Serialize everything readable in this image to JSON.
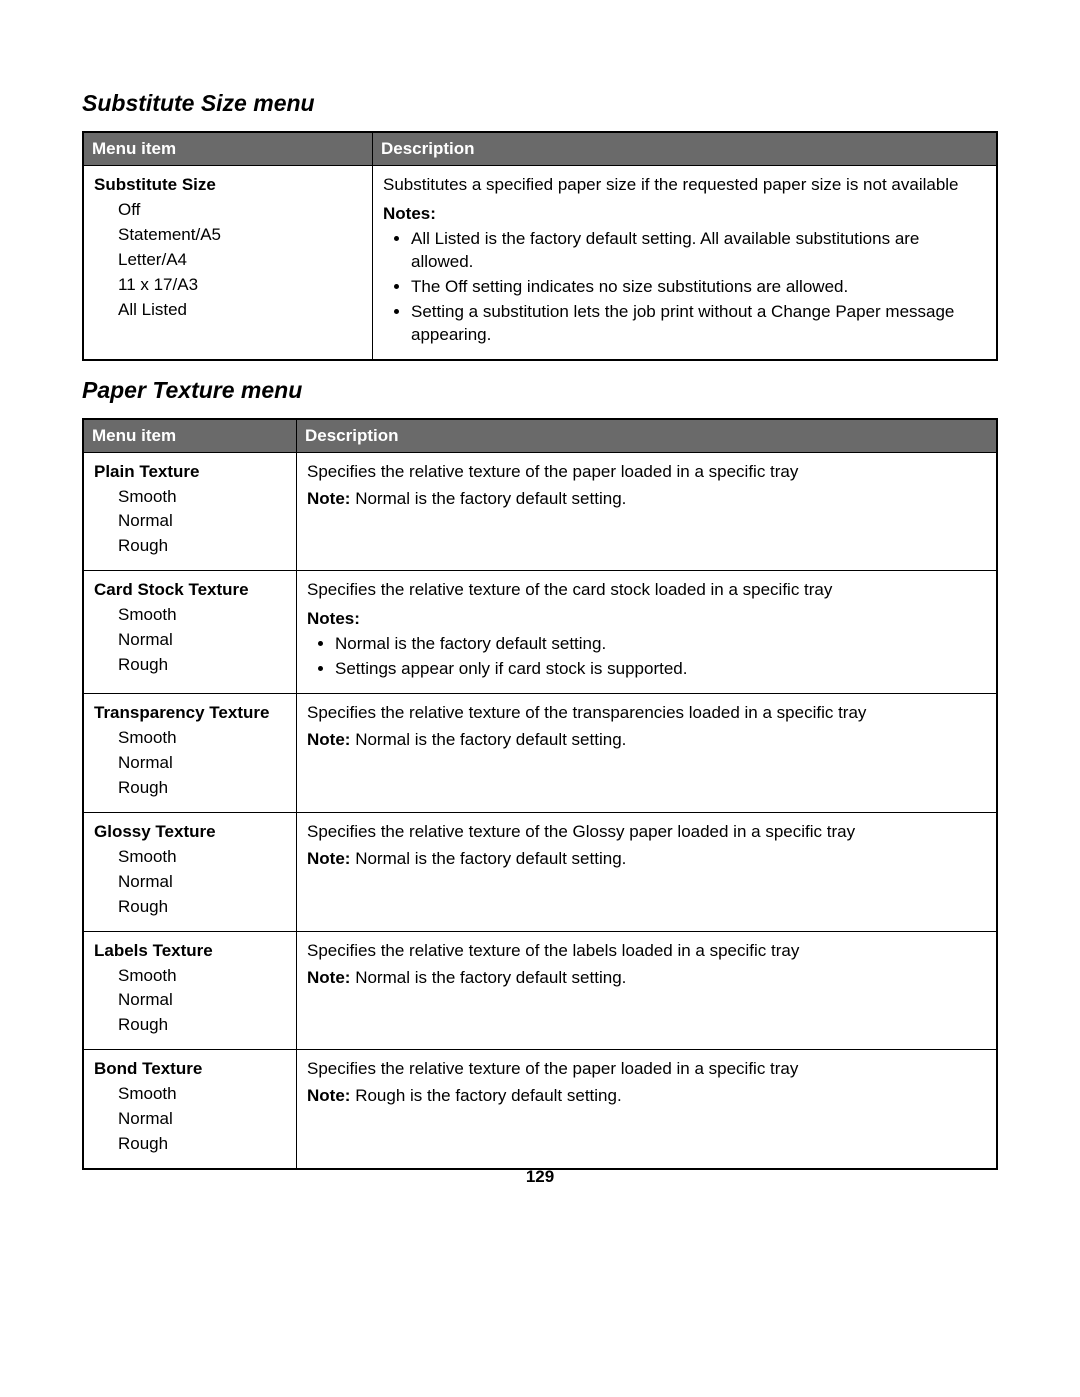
{
  "page_number": "129",
  "colors": {
    "header_bg": "#6a6a6a",
    "header_text": "#ffffff",
    "border": "#000000",
    "page_bg": "#ffffff",
    "text": "#000000"
  },
  "section1": {
    "title": "Substitute Size menu",
    "columns": [
      "Menu item",
      "Description"
    ],
    "rows": [
      {
        "item_title": "Substitute Size",
        "options": [
          "Off",
          "Statement/A5",
          "Letter/A4",
          "11 x 17/A3",
          "All Listed"
        ],
        "desc": "Substitutes a specified paper size if the requested paper size is not available",
        "notes_label": "Notes:",
        "notes": [
          "All Listed is the factory default setting. All available substitutions are allowed.",
          "The Off setting indicates no size substitutions are allowed.",
          "Setting a substitution lets the job print without a Change Paper message appearing."
        ]
      }
    ]
  },
  "section2": {
    "title": "Paper Texture menu",
    "columns": [
      "Menu item",
      "Description"
    ],
    "note_word": "Note:",
    "notes_word": "Notes:",
    "rows": [
      {
        "item_title": "Plain Texture",
        "options": [
          "Smooth",
          "Normal",
          "Rough"
        ],
        "desc": "Specifies the relative texture of the paper loaded in a specific tray",
        "single_note": "Normal is the factory default setting."
      },
      {
        "item_title": "Card Stock Texture",
        "options": [
          "Smooth",
          "Normal",
          "Rough"
        ],
        "desc": "Specifies the relative texture of the card stock loaded in a specific tray",
        "multi_notes": [
          "Normal is the factory default setting.",
          "Settings appear only if card stock is supported."
        ]
      },
      {
        "item_title": "Transparency Texture",
        "options": [
          "Smooth",
          "Normal",
          "Rough"
        ],
        "desc": "Specifies the relative texture of the transparencies loaded in a specific tray",
        "single_note": "Normal is the factory default setting."
      },
      {
        "item_title": "Glossy Texture",
        "options": [
          "Smooth",
          "Normal",
          "Rough"
        ],
        "desc": "Specifies the relative texture of the Glossy paper loaded in a specific tray",
        "single_note": "Normal is the factory default setting."
      },
      {
        "item_title": "Labels Texture",
        "options": [
          "Smooth",
          "Normal",
          "Rough"
        ],
        "desc": "Specifies the relative texture of the labels loaded in a specific tray",
        "single_note": "Normal is the factory default setting."
      },
      {
        "item_title": "Bond Texture",
        "options": [
          "Smooth",
          "Normal",
          "Rough"
        ],
        "desc": "Specifies the relative texture of the paper loaded in a specific tray",
        "single_note": "Rough is the factory default setting."
      }
    ]
  }
}
